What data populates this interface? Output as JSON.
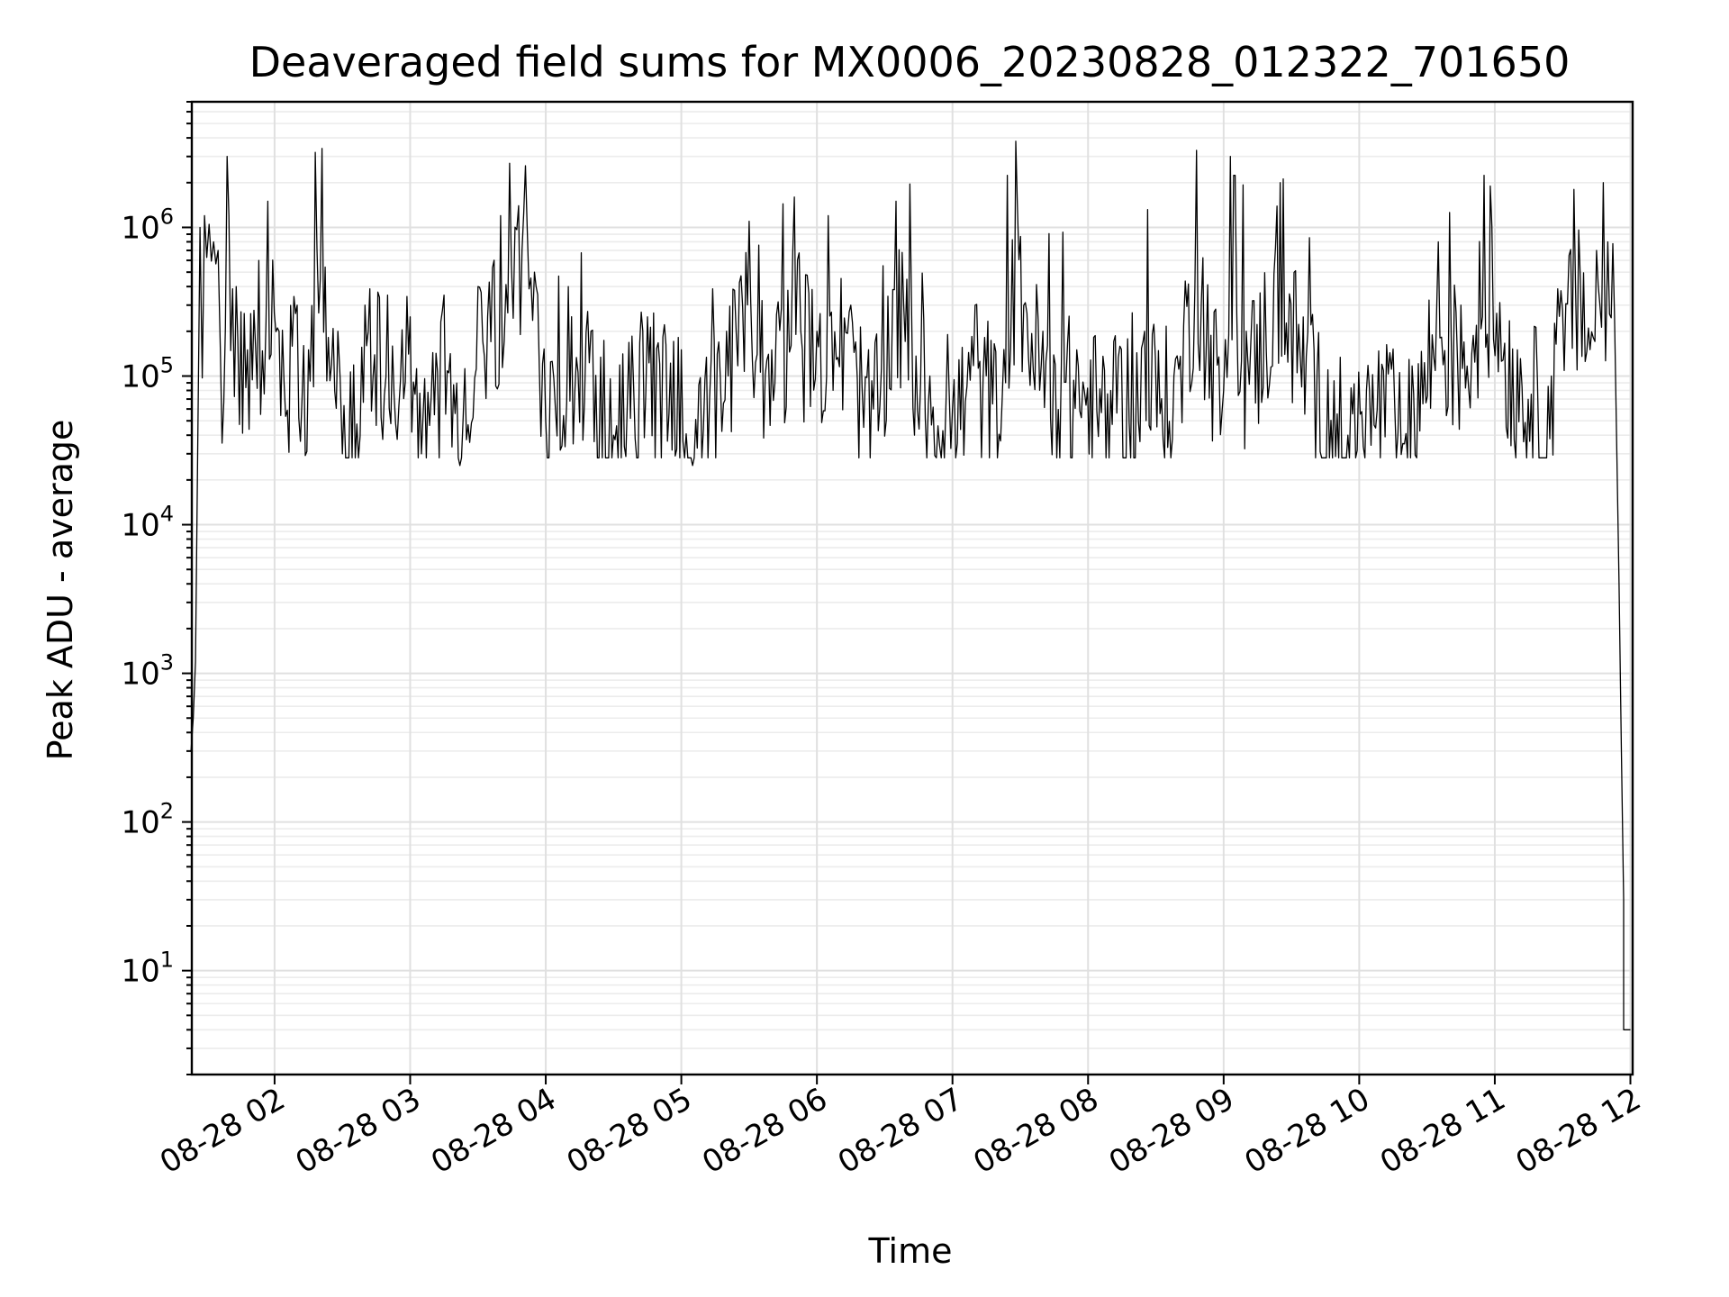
{
  "chart_data": {
    "type": "line",
    "title": "Deaveraged field sums for MX0006_20230828_012322_701650",
    "xlabel": "Time",
    "ylabel": "Peak ADU - average",
    "y_scale": "log",
    "ylim": [
      2,
      7000000
    ],
    "xlim": [
      "2023-08-28 01:23:22",
      "2023-08-28 12:01:00"
    ],
    "x_ticks": [
      {
        "label": "08-28 02",
        "value": "2023-08-28 02:00"
      },
      {
        "label": "08-28 03",
        "value": "2023-08-28 03:00"
      },
      {
        "label": "08-28 04",
        "value": "2023-08-28 04:00"
      },
      {
        "label": "08-28 05",
        "value": "2023-08-28 05:00"
      },
      {
        "label": "08-28 06",
        "value": "2023-08-28 06:00"
      },
      {
        "label": "08-28 07",
        "value": "2023-08-28 07:00"
      },
      {
        "label": "08-28 08",
        "value": "2023-08-28 08:00"
      },
      {
        "label": "08-28 09",
        "value": "2023-08-28 09:00"
      },
      {
        "label": "08-28 10",
        "value": "2023-08-28 10:00"
      },
      {
        "label": "08-28 11",
        "value": "2023-08-28 11:00"
      },
      {
        "label": "08-28 12",
        "value": "2023-08-28 12:00"
      }
    ],
    "y_ticks": [
      {
        "base": "10",
        "exp": "1",
        "value": 10
      },
      {
        "base": "10",
        "exp": "2",
        "value": 100
      },
      {
        "base": "10",
        "exp": "3",
        "value": 1000
      },
      {
        "base": "10",
        "exp": "4",
        "value": 10000
      },
      {
        "base": "10",
        "exp": "5",
        "value": 100000
      },
      {
        "base": "10",
        "exp": "6",
        "value": 1000000
      }
    ],
    "grid": "major and minor",
    "series": [
      {
        "color": "#000000",
        "points": [
          [
            "2023-08-28 01:23",
            300
          ],
          [
            "2023-08-28 01:24",
            500
          ],
          [
            "2023-08-28 01:25",
            1200
          ],
          [
            "2023-08-28 01:27",
            1000000
          ],
          [
            "2023-08-28 01:29",
            1200000
          ],
          [
            "2023-08-28 01:31",
            1050000
          ],
          [
            "2023-08-28 01:33",
            800000
          ],
          [
            "2023-08-28 01:35",
            700000
          ],
          [
            "2023-08-28 01:36",
            150000
          ],
          [
            "2023-08-28 01:39",
            3000000
          ],
          [
            "2023-08-28 01:43",
            400000
          ],
          [
            "2023-08-28 01:48",
            150000
          ],
          [
            "2023-08-28 01:53",
            600000
          ],
          [
            "2023-08-28 01:57",
            1500000
          ],
          [
            "2023-08-28 02:02",
            200000
          ],
          [
            "2023-08-28 02:10",
            300000
          ],
          [
            "2023-08-28 02:15",
            150000
          ],
          [
            "2023-08-28 02:18",
            3200000
          ],
          [
            "2023-08-28 02:21",
            3400000
          ],
          [
            "2023-08-28 02:28",
            200000
          ],
          [
            "2023-08-28 02:30",
            30000
          ],
          [
            "2023-08-28 02:40",
            300000
          ],
          [
            "2023-08-28 02:50",
            350000
          ],
          [
            "2023-08-28 03:00",
            250000
          ],
          [
            "2023-08-28 03:05",
            30000
          ],
          [
            "2023-08-28 03:15",
            350000
          ],
          [
            "2023-08-28 03:22",
            25000
          ],
          [
            "2023-08-28 03:30",
            400000
          ],
          [
            "2023-08-28 03:40",
            1200000
          ],
          [
            "2023-08-28 03:44",
            2700000
          ],
          [
            "2023-08-28 03:48",
            1400000
          ],
          [
            "2023-08-28 03:51",
            2600000
          ],
          [
            "2023-08-28 03:55",
            500000
          ],
          [
            "2023-08-28 04:00",
            50000
          ],
          [
            "2023-08-28 04:10",
            400000
          ],
          [
            "2023-08-28 04:20",
            200000
          ],
          [
            "2023-08-28 04:30",
            40000
          ],
          [
            "2023-08-28 04:45",
            250000
          ],
          [
            "2023-08-28 05:00",
            150000
          ],
          [
            "2023-08-28 05:05",
            25000
          ],
          [
            "2023-08-28 05:20",
            200000
          ],
          [
            "2023-08-28 05:30",
            1100000
          ],
          [
            "2023-08-28 05:40",
            150000
          ],
          [
            "2023-08-28 05:50",
            1600000
          ],
          [
            "2023-08-28 06:00",
            200000
          ],
          [
            "2023-08-28 06:05",
            1200000
          ],
          [
            "2023-08-28 06:15",
            300000
          ],
          [
            "2023-08-28 06:25",
            60000
          ],
          [
            "2023-08-28 06:35",
            1500000
          ],
          [
            "2023-08-28 06:50",
            100000
          ],
          [
            "2023-08-28 07:00",
            60000
          ],
          [
            "2023-08-28 07:10",
            300000
          ],
          [
            "2023-08-28 07:22",
            70000
          ],
          [
            "2023-08-28 07:28",
            3800000
          ],
          [
            "2023-08-28 07:40",
            200000
          ],
          [
            "2023-08-28 07:55",
            150000
          ],
          [
            "2023-08-28 08:10",
            80000
          ],
          [
            "2023-08-28 08:25",
            200000
          ],
          [
            "2023-08-28 08:38",
            100000
          ],
          [
            "2023-08-28 08:48",
            3300000
          ],
          [
            "2023-08-28 09:00",
            80000
          ],
          [
            "2023-08-28 09:03",
            3000000
          ],
          [
            "2023-08-28 09:10",
            200000
          ],
          [
            "2023-08-28 09:25",
            2000000
          ],
          [
            "2023-08-28 09:40",
            150000
          ],
          [
            "2023-08-28 09:55",
            40000
          ],
          [
            "2023-08-28 10:10",
            120000
          ],
          [
            "2023-08-28 10:20",
            35000
          ],
          [
            "2023-08-28 10:35",
            800000
          ],
          [
            "2023-08-28 10:45",
            300000
          ],
          [
            "2023-08-28 10:58",
            1900000
          ],
          [
            "2023-08-28 11:10",
            150000
          ],
          [
            "2023-08-28 11:25",
            100000
          ],
          [
            "2023-08-28 11:35",
            1800000
          ],
          [
            "2023-08-28 11:45",
            700000
          ],
          [
            "2023-08-28 11:48",
            2000000
          ],
          [
            "2023-08-28 11:50",
            800000
          ],
          [
            "2023-08-28 11:53",
            250000
          ],
          [
            "2023-08-28 11:55",
            4000
          ],
          [
            "2023-08-28 11:56",
            300
          ],
          [
            "2023-08-28 11:57",
            30
          ],
          [
            "2023-08-28 11:57",
            4
          ],
          [
            "2023-08-28 12:00",
            4
          ]
        ]
      }
    ]
  }
}
